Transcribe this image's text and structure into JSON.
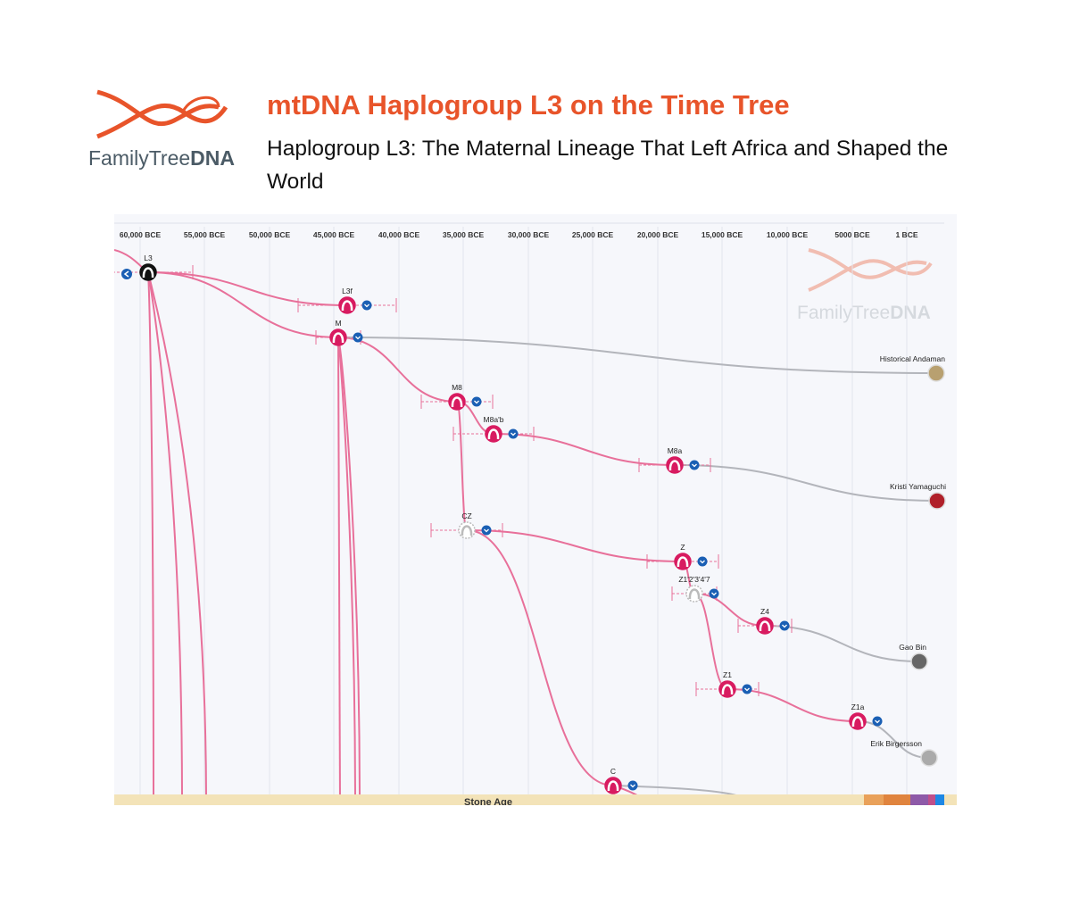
{
  "logo": {
    "brand": "FamilyTree",
    "brand_bold": "DNA"
  },
  "header": {
    "title": "mtDNA Haplogroup L3 on the Time Tree",
    "subtitle": "Haplogroup L3: The Maternal Lineage That Left Africa and Shaped the World"
  },
  "axis": {
    "labels": [
      "60,000 BCE",
      "55,000 BCE",
      "50,000 BCE",
      "45,000 BCE",
      "40,000 BCE",
      "35,000 BCE",
      "30,000 BCE",
      "25,000 BCE",
      "20,000 BCE",
      "15,000 BCE",
      "10,000 BCE",
      "5000 BCE",
      "1 BCE"
    ]
  },
  "nodes": [
    {
      "label": "L3"
    },
    {
      "label": "L3f"
    },
    {
      "label": "M"
    },
    {
      "label": "M8"
    },
    {
      "label": "M8a'b"
    },
    {
      "label": "M8a"
    },
    {
      "label": "CZ"
    },
    {
      "label": "Z"
    },
    {
      "label": "Z1'2'3'4'7"
    },
    {
      "label": "Z4"
    },
    {
      "label": "Z1"
    },
    {
      "label": "Z1a"
    },
    {
      "label": "C"
    }
  ],
  "leaves": [
    {
      "name": "Historical Andaman"
    },
    {
      "name": "Kristi Yamaguchi"
    },
    {
      "name": "Gao Bin"
    },
    {
      "name": "Erik Birgersson"
    }
  ],
  "footer": {
    "era": "Stone Age"
  }
}
